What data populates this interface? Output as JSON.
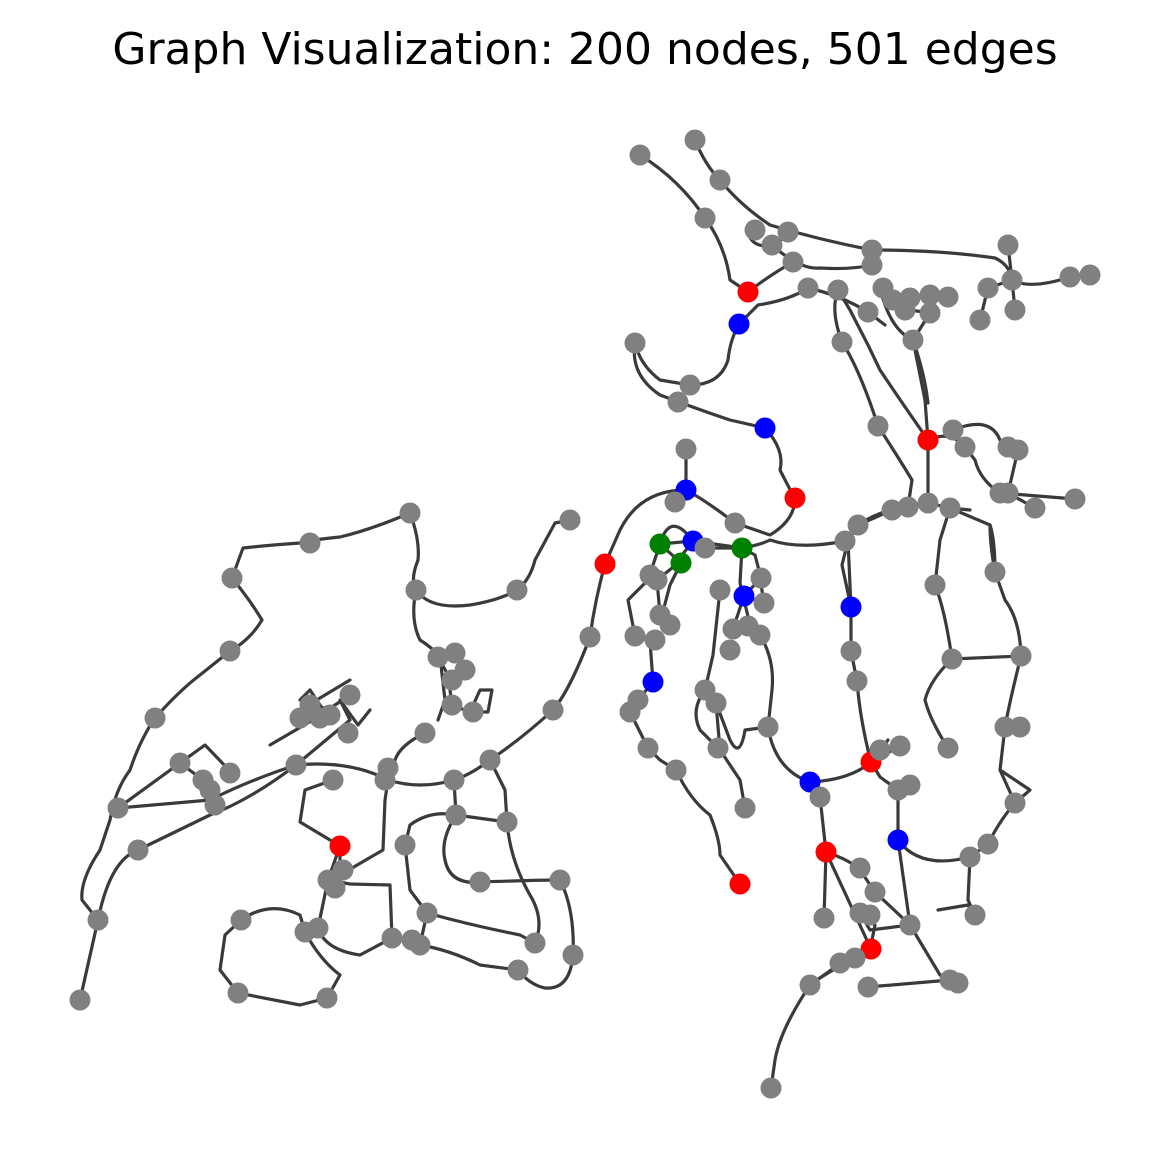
{
  "title": "Graph Visualization: 200 nodes, 501 edges",
  "colors": {
    "background": "#ffffff",
    "edge": "#3a3a3a",
    "node_default": "#808080",
    "node_red": "#ff0000",
    "node_blue": "#0000ff",
    "node_green": "#008000"
  }
}
